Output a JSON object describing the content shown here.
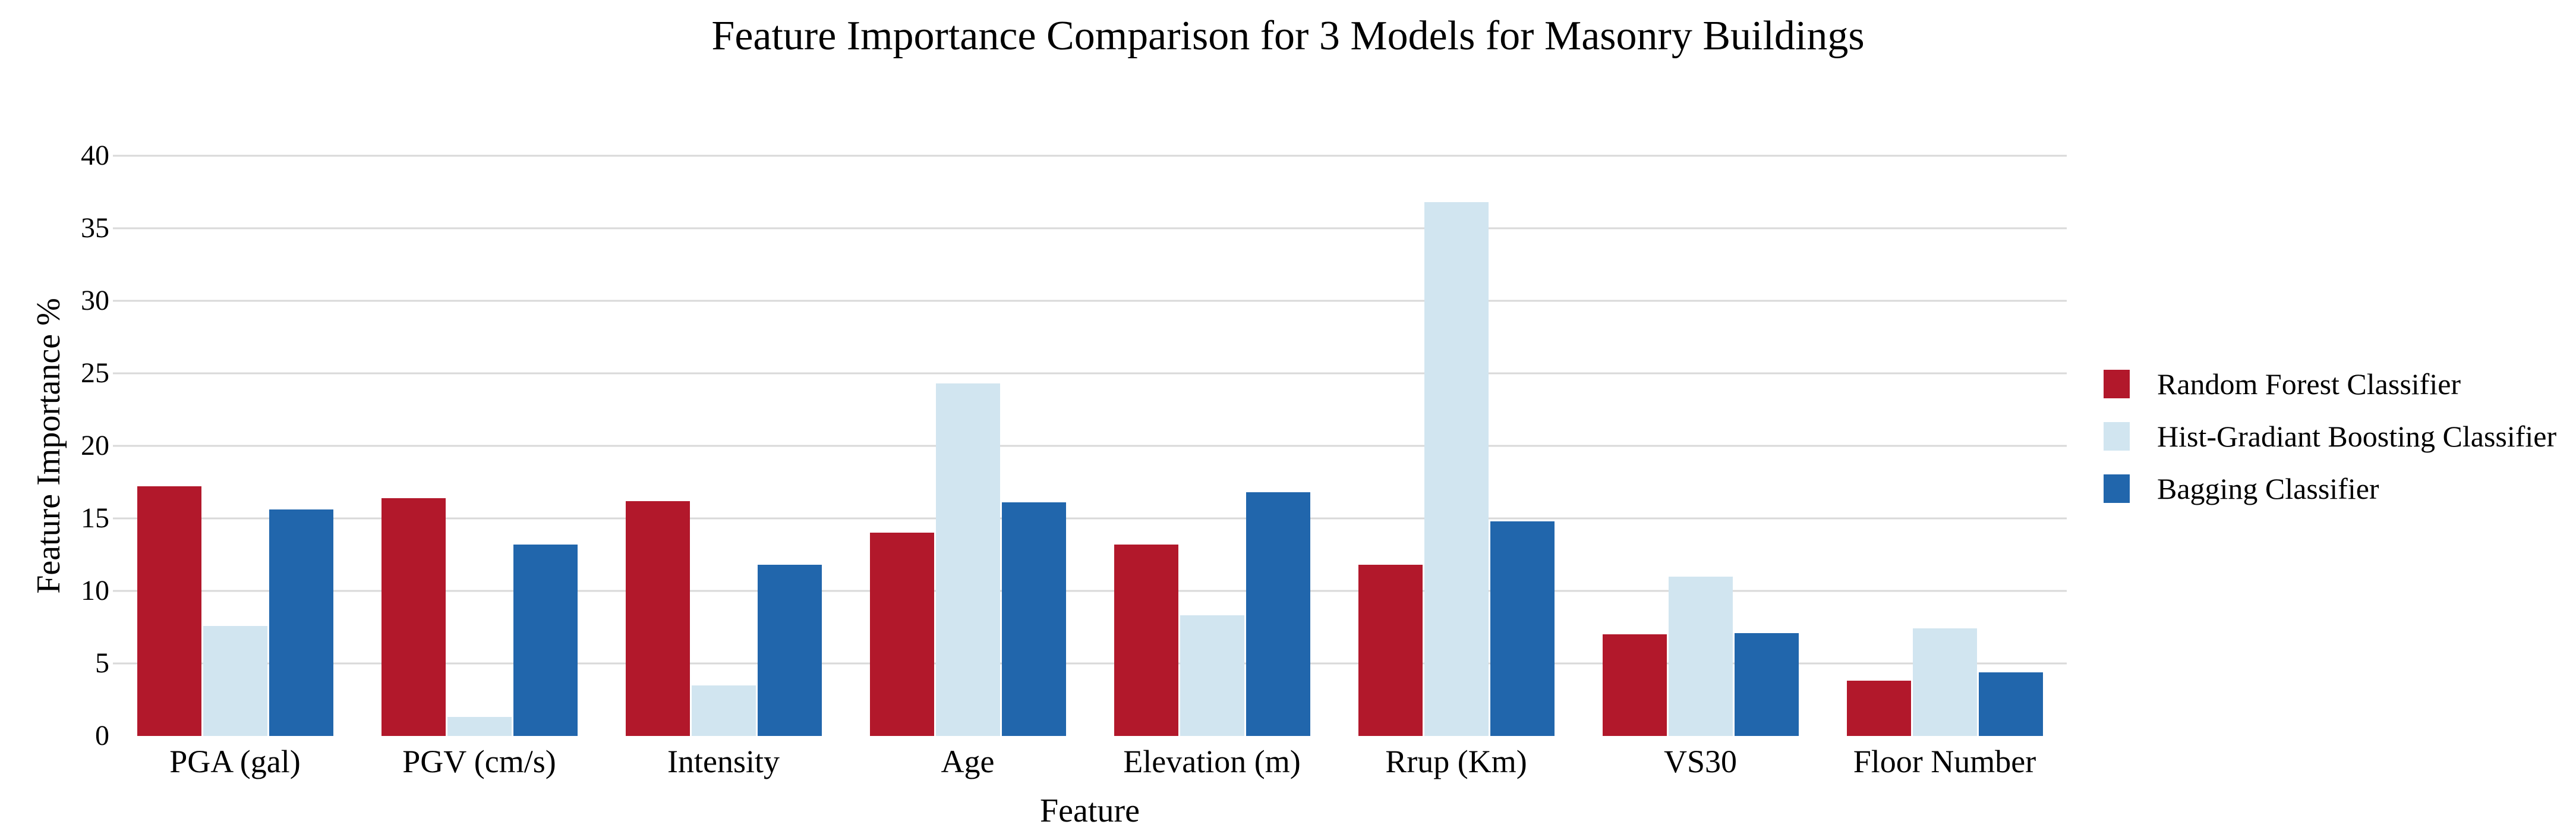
{
  "chart_data": {
    "type": "bar",
    "title": "Feature Importance Comparison for 3 Models for Masonry Buildings",
    "xlabel": "Feature",
    "ylabel": "Feature Importance %",
    "ylim": [
      0,
      40
    ],
    "yticks": [
      0,
      5,
      10,
      15,
      20,
      25,
      30,
      35,
      40
    ],
    "grid": "horizontal",
    "gridline_color": "#d9d9d9",
    "background_color": "#ffffff",
    "text_color": "#000000",
    "legend_position": "right-center",
    "categories": [
      "PGA (gal)",
      "PGV (cm/s)",
      "Intensity",
      "Age",
      "Elevation (m)",
      "Rrup (Km)",
      "VS30",
      "Floor Number"
    ],
    "series": [
      {
        "name": "Random Forest Classifier",
        "color": "#b2182b",
        "values": [
          17.2,
          16.4,
          16.2,
          14.0,
          13.2,
          11.8,
          7.0,
          3.8
        ]
      },
      {
        "name": "Hist-Gradiant Boosting Classifier",
        "color": "#d1e5f0",
        "values": [
          7.6,
          1.3,
          3.5,
          24.3,
          8.3,
          36.8,
          11.0,
          7.4
        ]
      },
      {
        "name": "Bagging Classifier",
        "color": "#2166ac",
        "values": [
          15.6,
          13.2,
          11.8,
          16.1,
          16.8,
          14.8,
          7.1,
          4.4
        ]
      }
    ]
  }
}
